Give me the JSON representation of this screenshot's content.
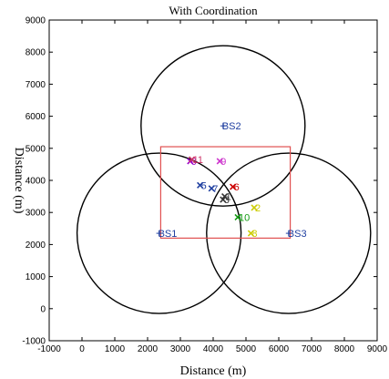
{
  "chart_data": {
    "type": "scatter",
    "title": "With Coordination",
    "xlabel": "Distance (m)",
    "ylabel": "Distance (m)",
    "xlim": [
      -1000,
      9000
    ],
    "ylim": [
      -1000,
      9000
    ],
    "xticks": [
      "-1000",
      "0",
      "1000",
      "2000",
      "3000",
      "4000",
      "5000",
      "6000",
      "7000",
      "8000",
      "9000"
    ],
    "yticks": [
      "-1000",
      "0",
      "1000",
      "2000",
      "3000",
      "4000",
      "5000",
      "6000",
      "7000",
      "8000",
      "9000"
    ],
    "grid": false,
    "base_stations": [
      {
        "label": "BS1",
        "x": 2350,
        "y": 2350,
        "radius": 2500
      },
      {
        "label": "BS2",
        "x": 4300,
        "y": 5700,
        "radius": 2500
      },
      {
        "label": "BS3",
        "x": 6300,
        "y": 2350,
        "radius": 2500
      }
    ],
    "coverage_rect": {
      "x": [
        2400,
        6350
      ],
      "y": [
        2200,
        5050
      ],
      "color": "#e05050"
    },
    "users": [
      {
        "label": "0",
        "x": 3300,
        "y": 4600,
        "color": "#9900cc"
      },
      {
        "label": "1",
        "x": 4350,
        "y": 3500,
        "color": "#333333"
      },
      {
        "label": "2",
        "x": 5250,
        "y": 3150,
        "color": "#cccc00"
      },
      {
        "label": "3",
        "x": 4300,
        "y": 3400,
        "color": "#333333"
      },
      {
        "label": "5",
        "x": 3600,
        "y": 3850,
        "color": "#1f3fa0"
      },
      {
        "label": "6",
        "x": 4600,
        "y": 3800,
        "color": "#cc0000"
      },
      {
        "label": "7",
        "x": 3950,
        "y": 3750,
        "color": "#1f3fa0"
      },
      {
        "label": "8",
        "x": 5150,
        "y": 2350,
        "color": "#cccc00"
      },
      {
        "label": "9",
        "x": 4200,
        "y": 4600,
        "color": "#cc33cc"
      },
      {
        "label": "10",
        "x": 4750,
        "y": 2850,
        "color": "#119911"
      },
      {
        "label": "11",
        "x": 3350,
        "y": 4650,
        "color": "#cc3366"
      }
    ],
    "colors": {
      "axes": "#000000",
      "circles": "#000000",
      "bs_label": "#1f3fa0"
    }
  }
}
